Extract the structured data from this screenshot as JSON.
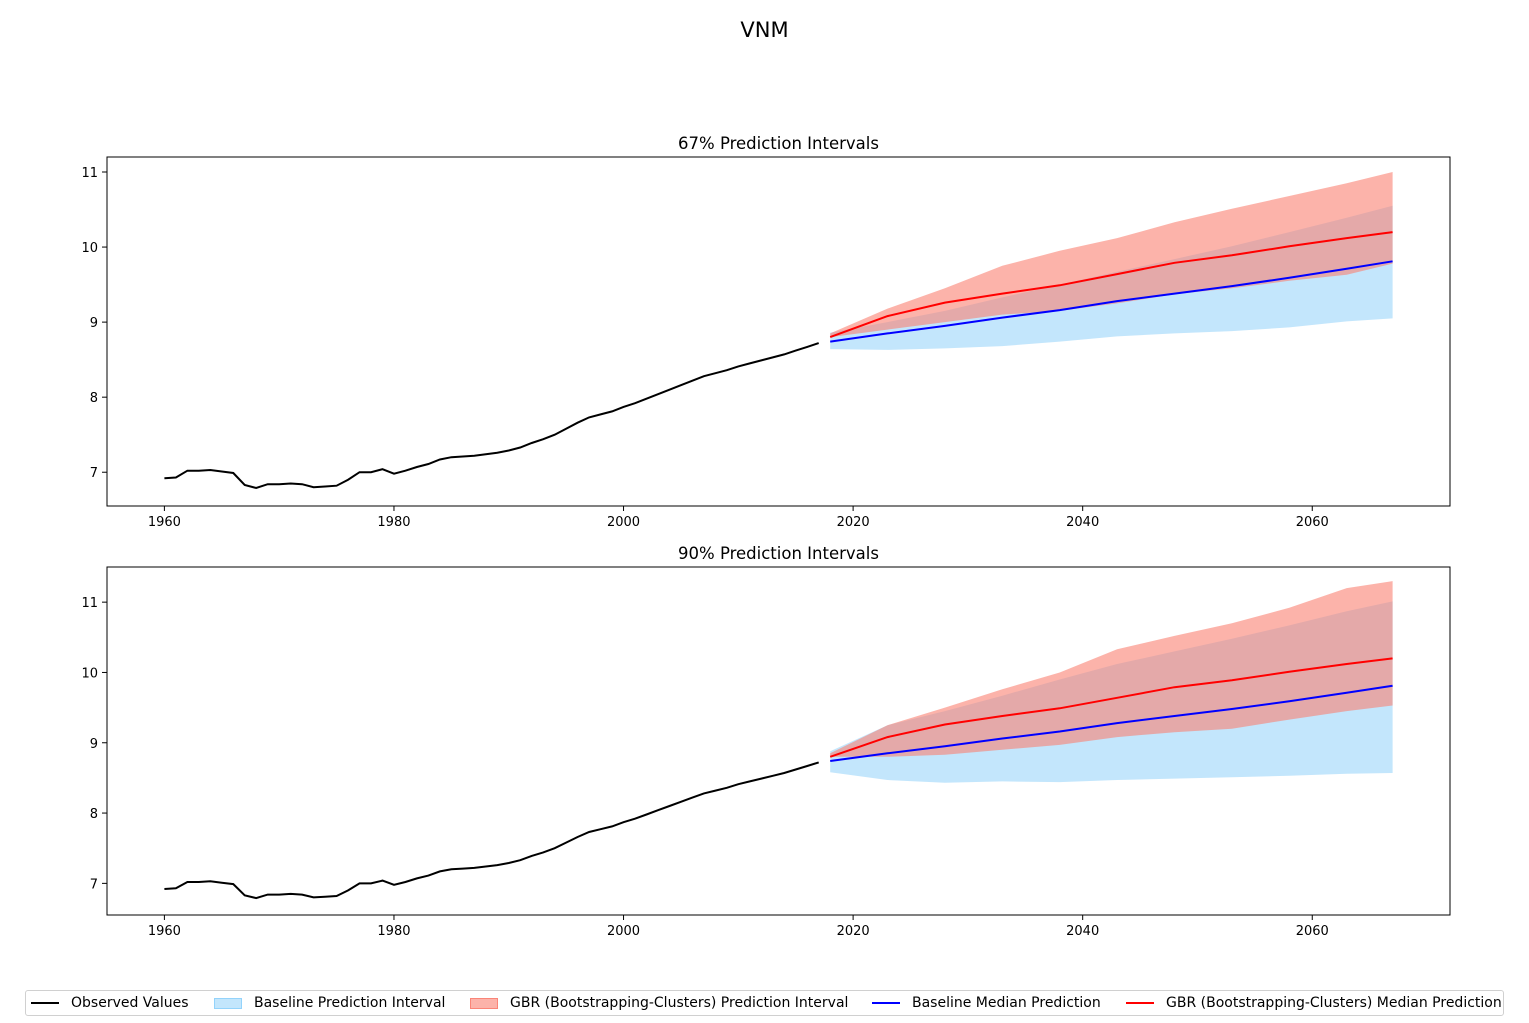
{
  "figure": {
    "suptitle": "VNM"
  },
  "colors": {
    "observed": "#000000",
    "baseline_interval": "#87CEFA",
    "gbr_interval": "#FA8072",
    "baseline_median": "#0000FF",
    "gbr_median": "#FF0000"
  },
  "legend": {
    "placement": "bottom-center",
    "items": [
      {
        "label": "Observed Values",
        "kind": "line",
        "color": "#000000"
      },
      {
        "label": "Baseline Prediction Interval",
        "kind": "patch",
        "color": "#87CEFA"
      },
      {
        "label": "GBR (Bootstrapping-Clusters) Prediction Interval",
        "kind": "patch",
        "color": "#FA8072"
      },
      {
        "label": "Baseline Median Prediction",
        "kind": "line",
        "color": "#0000FF"
      },
      {
        "label": "GBR (Bootstrapping-Clusters) Median Prediction",
        "kind": "line",
        "color": "#FF0000"
      }
    ]
  },
  "chart_data": [
    {
      "type": "line",
      "title": "67% Prediction Intervals",
      "xlabel": "",
      "ylabel": "",
      "xlim": [
        1955,
        2072
      ],
      "ylim": [
        6.55,
        11.2
      ],
      "xticks": [
        1960,
        1980,
        2000,
        2020,
        2040,
        2060
      ],
      "yticks": [
        7,
        8,
        9,
        10,
        11
      ],
      "grid": false,
      "observed": {
        "x": [
          1960,
          1961,
          1962,
          1963,
          1964,
          1965,
          1966,
          1967,
          1968,
          1969,
          1970,
          1971,
          1972,
          1973,
          1974,
          1975,
          1976,
          1977,
          1978,
          1979,
          1980,
          1981,
          1982,
          1983,
          1984,
          1985,
          1986,
          1987,
          1988,
          1989,
          1990,
          1991,
          1992,
          1993,
          1994,
          1995,
          1996,
          1997,
          1998,
          1999,
          2000,
          2001,
          2002,
          2003,
          2004,
          2005,
          2006,
          2007,
          2008,
          2009,
          2010,
          2011,
          2012,
          2013,
          2014,
          2015,
          2016,
          2017
        ],
        "y": [
          6.92,
          6.93,
          7.02,
          7.02,
          7.03,
          7.01,
          6.99,
          6.83,
          6.79,
          6.84,
          6.84,
          6.85,
          6.84,
          6.8,
          6.81,
          6.82,
          6.9,
          7.0,
          7.0,
          7.04,
          6.98,
          7.02,
          7.07,
          7.11,
          7.17,
          7.2,
          7.21,
          7.22,
          7.24,
          7.26,
          7.29,
          7.33,
          7.39,
          7.44,
          7.5,
          7.58,
          7.66,
          7.73,
          7.77,
          7.81,
          7.87,
          7.92,
          7.98,
          8.04,
          8.1,
          8.16,
          8.22,
          8.28,
          8.32,
          8.36,
          8.41,
          8.45,
          8.49,
          8.53,
          8.57,
          8.62,
          8.67,
          8.72
        ]
      },
      "forecast_x": [
        2018,
        2023,
        2028,
        2033,
        2038,
        2043,
        2048,
        2053,
        2058,
        2063,
        2067
      ],
      "baseline_interval": {
        "lower": [
          8.64,
          8.63,
          8.65,
          8.68,
          8.74,
          8.81,
          8.85,
          8.88,
          8.93,
          9.01,
          9.05
        ],
        "upper": [
          8.86,
          9.0,
          9.15,
          9.33,
          9.5,
          9.67,
          9.84,
          10.01,
          10.2,
          10.39,
          10.55
        ]
      },
      "gbr_interval": {
        "lower": [
          8.8,
          8.9,
          9.0,
          9.1,
          9.15,
          9.25,
          9.37,
          9.45,
          9.55,
          9.63,
          9.78
        ],
        "upper": [
          8.85,
          9.18,
          9.45,
          9.75,
          9.95,
          10.12,
          10.33,
          10.51,
          10.68,
          10.85,
          11.0
        ]
      },
      "baseline_median": [
        8.74,
        8.85,
        8.95,
        9.06,
        9.16,
        9.28,
        9.38,
        9.48,
        9.59,
        9.71,
        9.81
      ],
      "gbr_median": [
        8.8,
        9.08,
        9.26,
        9.38,
        9.49,
        9.64,
        9.79,
        9.89,
        10.01,
        10.12,
        10.2
      ]
    },
    {
      "type": "line",
      "title": "90% Prediction Intervals",
      "xlabel": "",
      "ylabel": "",
      "xlim": [
        1955,
        2072
      ],
      "ylim": [
        6.55,
        11.5
      ],
      "xticks": [
        1960,
        1980,
        2000,
        2020,
        2040,
        2060
      ],
      "yticks": [
        7,
        8,
        9,
        10,
        11
      ],
      "grid": false,
      "observed": {
        "x": [
          1960,
          1961,
          1962,
          1963,
          1964,
          1965,
          1966,
          1967,
          1968,
          1969,
          1970,
          1971,
          1972,
          1973,
          1974,
          1975,
          1976,
          1977,
          1978,
          1979,
          1980,
          1981,
          1982,
          1983,
          1984,
          1985,
          1986,
          1987,
          1988,
          1989,
          1990,
          1991,
          1992,
          1993,
          1994,
          1995,
          1996,
          1997,
          1998,
          1999,
          2000,
          2001,
          2002,
          2003,
          2004,
          2005,
          2006,
          2007,
          2008,
          2009,
          2010,
          2011,
          2012,
          2013,
          2014,
          2015,
          2016,
          2017
        ],
        "y": [
          6.92,
          6.93,
          7.02,
          7.02,
          7.03,
          7.01,
          6.99,
          6.83,
          6.79,
          6.84,
          6.84,
          6.85,
          6.84,
          6.8,
          6.81,
          6.82,
          6.9,
          7.0,
          7.0,
          7.04,
          6.98,
          7.02,
          7.07,
          7.11,
          7.17,
          7.2,
          7.21,
          7.22,
          7.24,
          7.26,
          7.29,
          7.33,
          7.39,
          7.44,
          7.5,
          7.58,
          7.66,
          7.73,
          7.77,
          7.81,
          7.87,
          7.92,
          7.98,
          8.04,
          8.1,
          8.16,
          8.22,
          8.28,
          8.32,
          8.36,
          8.41,
          8.45,
          8.49,
          8.53,
          8.57,
          8.62,
          8.67,
          8.72
        ]
      },
      "forecast_x": [
        2018,
        2023,
        2028,
        2033,
        2038,
        2043,
        2048,
        2053,
        2058,
        2063,
        2067
      ],
      "baseline_interval": {
        "lower": [
          8.58,
          8.47,
          8.43,
          8.45,
          8.44,
          8.47,
          8.49,
          8.51,
          8.53,
          8.56,
          8.57
        ],
        "upper": [
          8.88,
          9.25,
          9.45,
          9.67,
          9.9,
          10.12,
          10.3,
          10.48,
          10.67,
          10.87,
          11.01
        ]
      },
      "gbr_interval": {
        "lower": [
          8.8,
          8.8,
          8.83,
          8.9,
          8.97,
          9.08,
          9.15,
          9.2,
          9.33,
          9.45,
          9.53
        ],
        "upper": [
          8.85,
          9.25,
          9.5,
          9.76,
          10.0,
          10.33,
          10.52,
          10.7,
          10.92,
          11.2,
          11.3
        ]
      },
      "baseline_median": [
        8.74,
        8.85,
        8.95,
        9.06,
        9.16,
        9.28,
        9.38,
        9.48,
        9.59,
        9.71,
        9.81
      ],
      "gbr_median": [
        8.8,
        9.08,
        9.26,
        9.38,
        9.49,
        9.64,
        9.79,
        9.89,
        10.01,
        10.12,
        10.2
      ]
    }
  ]
}
